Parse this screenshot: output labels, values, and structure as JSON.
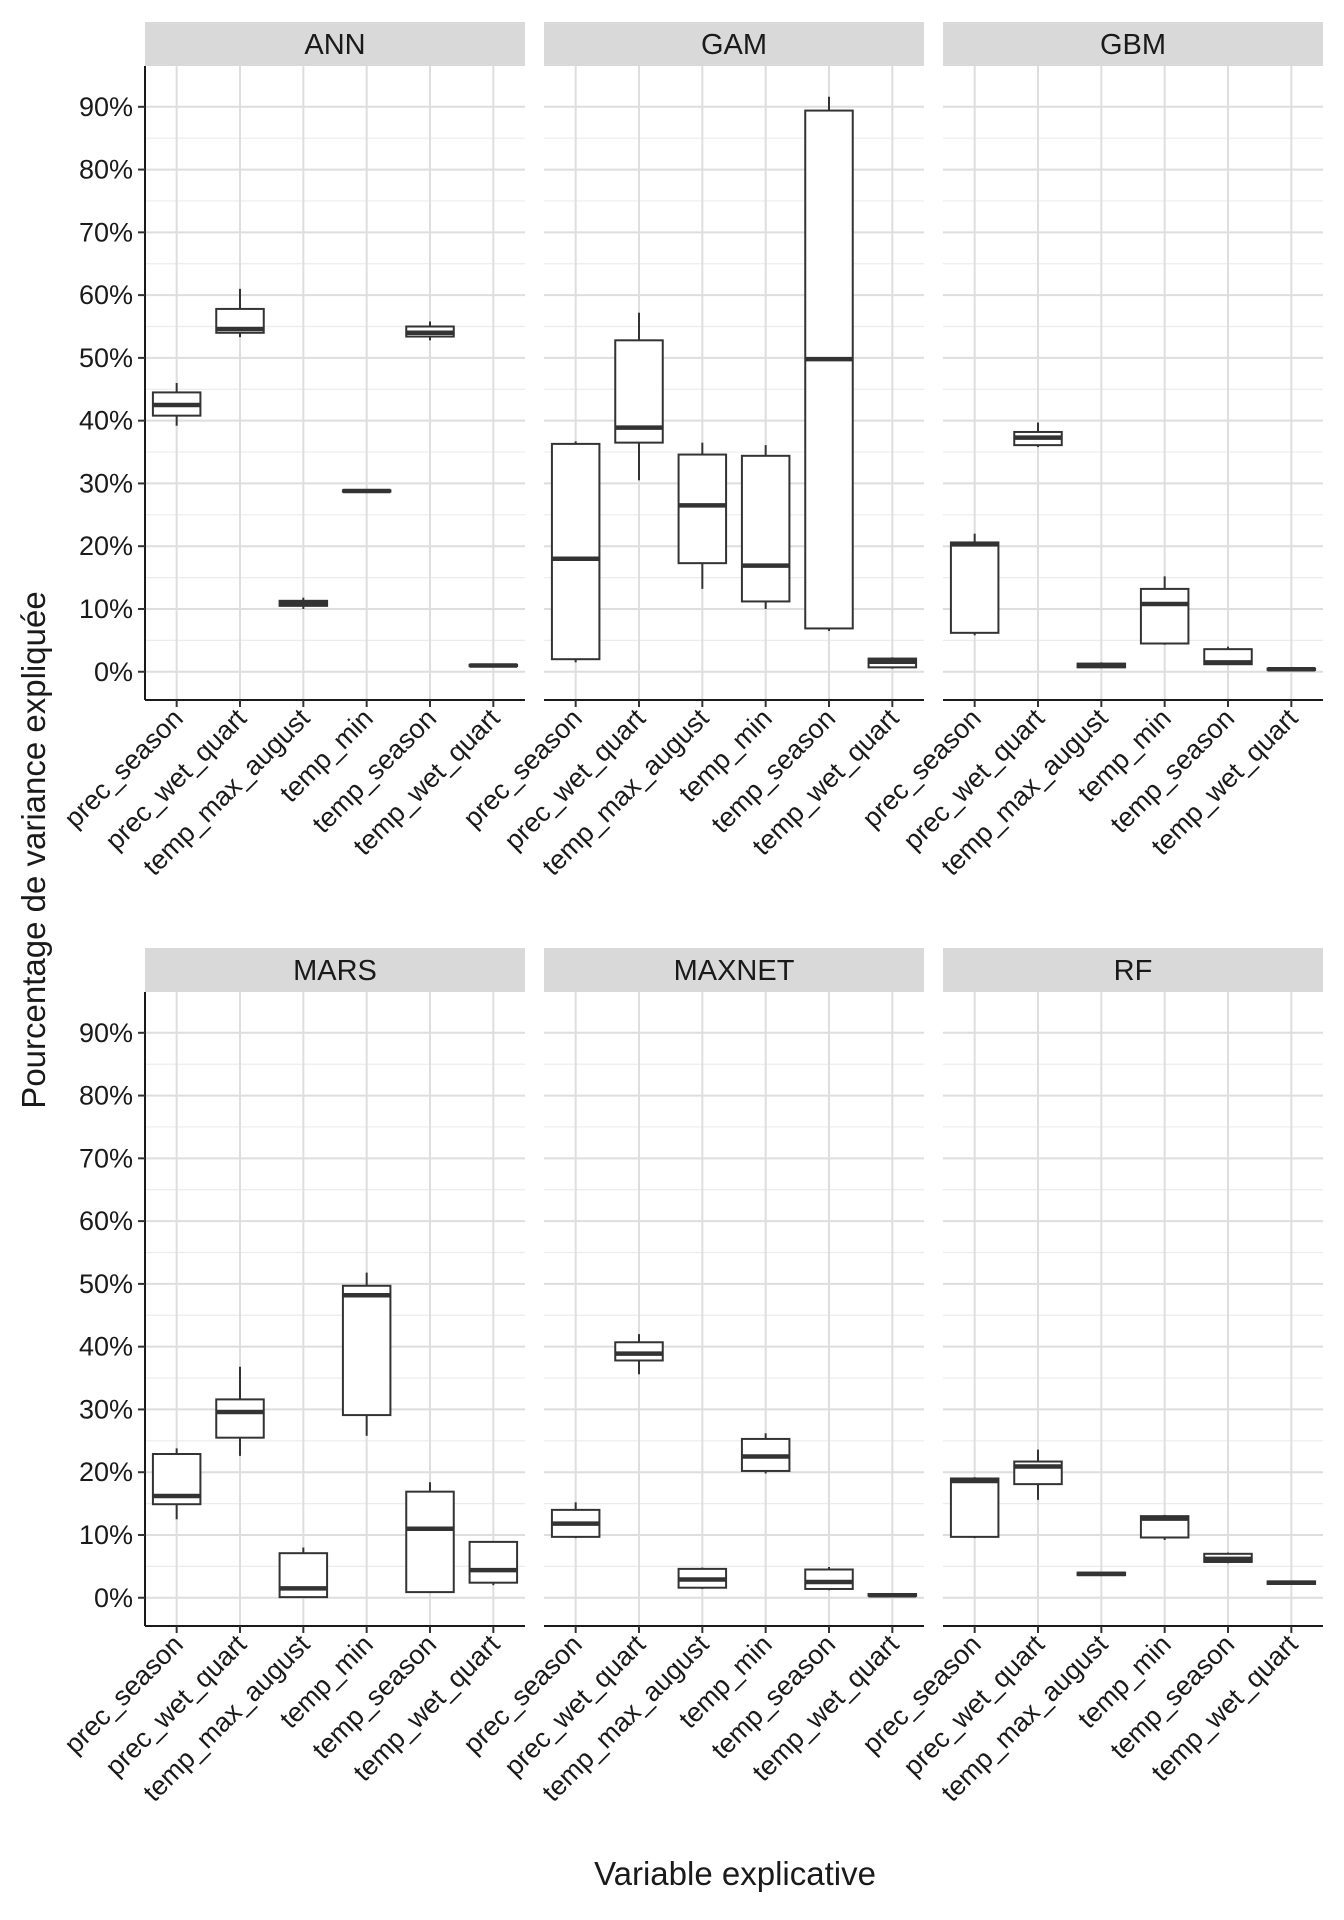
{
  "chart_data": {
    "type": "boxplot",
    "layout": "facet-grid 2x3",
    "xlabel": "Variable explicative",
    "ylabel": "Pourcentage de variance expliquée",
    "ylim": [
      -4.5,
      96.5
    ],
    "yticks": [
      0,
      10,
      20,
      30,
      40,
      50,
      60,
      70,
      80,
      90
    ],
    "ytick_labels": [
      "0%",
      "10%",
      "20%",
      "30%",
      "40%",
      "50%",
      "60%",
      "70%",
      "80%",
      "90%"
    ],
    "categories": [
      "prec_season",
      "prec_wet_quart",
      "temp_max_august",
      "temp_min",
      "temp_season",
      "temp_wet_quart"
    ],
    "facets": [
      {
        "name": "ANN",
        "boxes": [
          {
            "whisker_low": 39.2,
            "q1": 40.8,
            "median": 42.5,
            "q3": 44.5,
            "whisker_high": 46.0
          },
          {
            "whisker_low": 53.3,
            "q1": 54.0,
            "median": 54.6,
            "q3": 57.8,
            "whisker_high": 61.0
          },
          {
            "whisker_low": 10.0,
            "q1": 10.5,
            "median": 10.9,
            "q3": 11.3,
            "whisker_high": 11.8
          },
          {
            "whisker_low": 28.6,
            "q1": 28.7,
            "median": 28.8,
            "q3": 28.9,
            "whisker_high": 29.1
          },
          {
            "whisker_low": 52.8,
            "q1": 53.4,
            "median": 54.0,
            "q3": 55.0,
            "whisker_high": 55.8
          },
          {
            "whisker_low": 0.8,
            "q1": 0.9,
            "median": 1.0,
            "q3": 1.1,
            "whisker_high": 1.2
          }
        ]
      },
      {
        "name": "GAM",
        "boxes": [
          {
            "whisker_low": 1.5,
            "q1": 2.0,
            "median": 18.0,
            "q3": 36.3,
            "whisker_high": 36.7
          },
          {
            "whisker_low": 30.5,
            "q1": 36.5,
            "median": 38.9,
            "q3": 52.8,
            "whisker_high": 57.2
          },
          {
            "whisker_low": 13.2,
            "q1": 17.3,
            "median": 26.5,
            "q3": 34.6,
            "whisker_high": 36.5
          },
          {
            "whisker_low": 10.0,
            "q1": 11.2,
            "median": 16.9,
            "q3": 34.4,
            "whisker_high": 36.1
          },
          {
            "whisker_low": 6.5,
            "q1": 6.9,
            "median": 49.8,
            "q3": 89.4,
            "whisker_high": 91.6
          },
          {
            "whisker_low": 0.5,
            "q1": 0.7,
            "median": 1.6,
            "q3": 2.1,
            "whisker_high": 2.3
          }
        ]
      },
      {
        "name": "GBM",
        "boxes": [
          {
            "whisker_low": 5.8,
            "q1": 6.2,
            "median": 20.3,
            "q3": 20.6,
            "whisker_high": 22.0
          },
          {
            "whisker_low": 35.8,
            "q1": 36.1,
            "median": 37.3,
            "q3": 38.2,
            "whisker_high": 39.7
          },
          {
            "whisker_low": 0.6,
            "q1": 0.7,
            "median": 1.0,
            "q3": 1.3,
            "whisker_high": 1.5
          },
          {
            "whisker_low": 4.3,
            "q1": 4.5,
            "median": 10.8,
            "q3": 13.2,
            "whisker_high": 15.2
          },
          {
            "whisker_low": 1.1,
            "q1": 1.2,
            "median": 1.5,
            "q3": 3.6,
            "whisker_high": 4.0
          },
          {
            "whisker_low": 0.2,
            "q1": 0.3,
            "median": 0.4,
            "q3": 0.5,
            "whisker_high": 0.6
          }
        ]
      },
      {
        "name": "MARS",
        "boxes": [
          {
            "whisker_low": 12.5,
            "q1": 14.9,
            "median": 16.2,
            "q3": 22.9,
            "whisker_high": 23.8
          },
          {
            "whisker_low": 22.6,
            "q1": 25.5,
            "median": 29.6,
            "q3": 31.6,
            "whisker_high": 36.8
          },
          {
            "whisker_low": 0.0,
            "q1": 0.1,
            "median": 1.5,
            "q3": 7.1,
            "whisker_high": 8.0
          },
          {
            "whisker_low": 25.8,
            "q1": 29.1,
            "median": 48.2,
            "q3": 49.7,
            "whisker_high": 51.8
          },
          {
            "whisker_low": 0.8,
            "q1": 0.9,
            "median": 11.0,
            "q3": 16.9,
            "whisker_high": 18.4
          },
          {
            "whisker_low": 2.0,
            "q1": 2.4,
            "median": 4.4,
            "q3": 8.9,
            "whisker_high": 8.9
          }
        ]
      },
      {
        "name": "MAXNET",
        "boxes": [
          {
            "whisker_low": 9.5,
            "q1": 9.7,
            "median": 11.8,
            "q3": 14.0,
            "whisker_high": 15.2
          },
          {
            "whisker_low": 35.6,
            "q1": 37.8,
            "median": 38.9,
            "q3": 40.7,
            "whisker_high": 42.0
          },
          {
            "whisker_low": 1.4,
            "q1": 1.6,
            "median": 2.9,
            "q3": 4.6,
            "whisker_high": 4.8
          },
          {
            "whisker_low": 19.8,
            "q1": 20.2,
            "median": 22.5,
            "q3": 25.3,
            "whisker_high": 26.2
          },
          {
            "whisker_low": 1.2,
            "q1": 1.4,
            "median": 2.5,
            "q3": 4.5,
            "whisker_high": 4.9
          },
          {
            "whisker_low": 0.2,
            "q1": 0.3,
            "median": 0.4,
            "q3": 0.6,
            "whisker_high": 0.7
          }
        ]
      },
      {
        "name": "RF",
        "boxes": [
          {
            "whisker_low": 9.5,
            "q1": 9.7,
            "median": 18.6,
            "q3": 19.0,
            "whisker_high": 19.2
          },
          {
            "whisker_low": 15.6,
            "q1": 18.1,
            "median": 20.9,
            "q3": 21.7,
            "whisker_high": 23.6
          },
          {
            "whisker_low": 3.5,
            "q1": 3.6,
            "median": 3.8,
            "q3": 4.0,
            "whisker_high": 4.1
          },
          {
            "whisker_low": 9.2,
            "q1": 9.6,
            "median": 12.6,
            "q3": 13.0,
            "whisker_high": 13.2
          },
          {
            "whisker_low": 5.5,
            "q1": 5.7,
            "median": 6.2,
            "q3": 7.0,
            "whisker_high": 7.2
          },
          {
            "whisker_low": 2.1,
            "q1": 2.2,
            "median": 2.4,
            "q3": 2.6,
            "whisker_high": 2.7
          }
        ]
      }
    ]
  }
}
